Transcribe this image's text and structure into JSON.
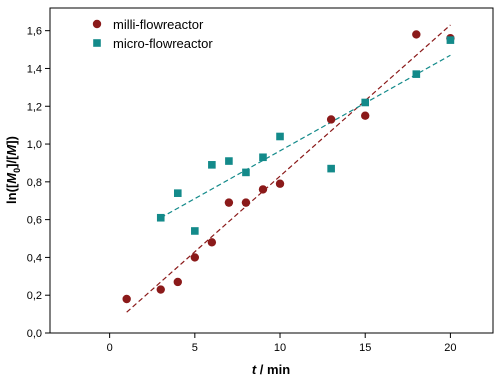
{
  "chart_data": {
    "type": "scatter",
    "xlabel_parts": [
      {
        "text": "t",
        "italic": true
      },
      {
        "text": " / min",
        "italic": false
      }
    ],
    "ylabel_parts": [
      {
        "text": "ln([",
        "italic": false,
        "sub": false
      },
      {
        "text": "M",
        "italic": true,
        "sub": false
      },
      {
        "text": "0",
        "italic": false,
        "sub": true
      },
      {
        "text": "]/[",
        "italic": false,
        "sub": false
      },
      {
        "text": "M",
        "italic": true,
        "sub": false
      },
      {
        "text": "])",
        "italic": false,
        "sub": false
      }
    ],
    "xlim": [
      -3.5,
      22.5
    ],
    "ylim": [
      0.0,
      1.72
    ],
    "x_ticks": [
      0,
      5,
      10,
      15,
      20
    ],
    "x_tick_labels": [
      "0",
      "5",
      "10",
      "15",
      "20"
    ],
    "y_ticks": [
      0.0,
      0.2,
      0.4,
      0.6,
      0.8,
      1.0,
      1.2,
      1.4,
      1.6
    ],
    "y_tick_labels": [
      "0,0",
      "0,2",
      "0,4",
      "0,6",
      "0,8",
      "1,0",
      "1,2",
      "1,4",
      "1,6"
    ],
    "legend_position": "top-left",
    "grid": false,
    "series": [
      {
        "name": "milli-flowreactor",
        "marker": "circle",
        "color": "#8b1a1a",
        "points": [
          [
            1,
            0.18
          ],
          [
            3,
            0.23
          ],
          [
            4,
            0.27
          ],
          [
            5,
            0.4
          ],
          [
            6,
            0.48
          ],
          [
            7,
            0.69
          ],
          [
            8,
            0.69
          ],
          [
            9,
            0.76
          ],
          [
            10,
            0.79
          ],
          [
            13,
            1.13
          ],
          [
            15,
            1.15
          ],
          [
            18,
            1.58
          ],
          [
            20,
            1.56
          ]
        ],
        "fit": {
          "x": [
            1,
            20
          ],
          "y": [
            0.11,
            1.63
          ]
        }
      },
      {
        "name": "micro-flowreactor",
        "marker": "square",
        "color": "#138a8a",
        "points": [
          [
            3,
            0.61
          ],
          [
            4,
            0.74
          ],
          [
            5,
            0.54
          ],
          [
            6,
            0.89
          ],
          [
            7,
            0.91
          ],
          [
            8,
            0.85
          ],
          [
            9,
            0.93
          ],
          [
            10,
            1.04
          ],
          [
            13,
            0.87
          ],
          [
            15,
            1.22
          ],
          [
            18,
            1.37
          ],
          [
            20,
            1.55
          ]
        ],
        "fit": {
          "x": [
            3,
            20
          ],
          "y": [
            0.61,
            1.47
          ]
        }
      }
    ]
  }
}
